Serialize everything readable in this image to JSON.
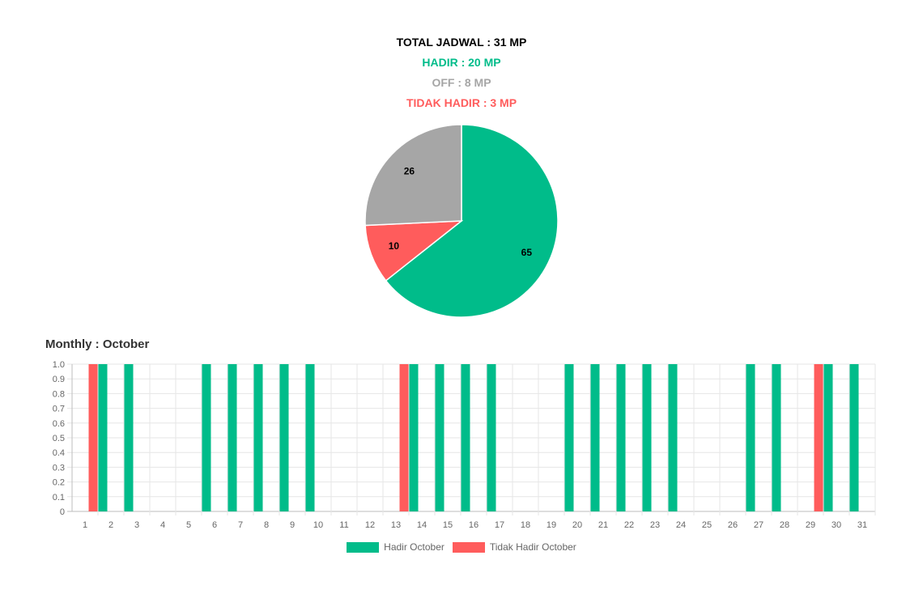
{
  "summary": {
    "total": "TOTAL JADWAL : 31 MP",
    "hadir": "HADIR : 20 MP",
    "off": "OFF : 8 MP",
    "tidak_hadir": "TIDAK HADIR : 3 MP"
  },
  "colors": {
    "hadir": "#00bc8a",
    "off": "#a6a6a6",
    "tidak_hadir": "#ff5c5c",
    "total": "#000000"
  },
  "monthly_title": "Monthly : October",
  "chart_data": [
    {
      "type": "pie",
      "slices": [
        {
          "value": 65,
          "label": "65",
          "color": "#00bc8a"
        },
        {
          "value": 10,
          "label": "10",
          "color": "#ff5c5c"
        },
        {
          "value": 26,
          "label": "26",
          "color": "#a6a6a6"
        }
      ]
    },
    {
      "type": "bar",
      "categories": [
        "1",
        "2",
        "3",
        "4",
        "5",
        "6",
        "7",
        "8",
        "9",
        "10",
        "11",
        "12",
        "13",
        "14",
        "15",
        "16",
        "17",
        "18",
        "19",
        "20",
        "21",
        "22",
        "23",
        "24",
        "25",
        "26",
        "27",
        "28",
        "29",
        "30",
        "31"
      ],
      "series": [
        {
          "name": "Hadir October",
          "color": "#00bc8a",
          "values": [
            0,
            1,
            1,
            0,
            0,
            1,
            1,
            1,
            1,
            1,
            0,
            0,
            0,
            1,
            1,
            1,
            1,
            0,
            0,
            1,
            1,
            1,
            1,
            1,
            0,
            0,
            1,
            1,
            0,
            1,
            1
          ]
        },
        {
          "name": "Tidak Hadir October",
          "color": "#ff5c5c",
          "values": [
            1,
            0,
            0,
            0,
            0,
            0,
            0,
            0,
            0,
            0,
            0,
            0,
            1,
            0,
            0,
            0,
            0,
            0,
            0,
            0,
            0,
            0,
            0,
            0,
            0,
            0,
            0,
            0,
            1,
            0,
            0
          ]
        }
      ],
      "ylim": [
        0,
        1
      ],
      "yticks": [
        "0",
        "0.1",
        "0.2",
        "0.3",
        "0.4",
        "0.5",
        "0.6",
        "0.7",
        "0.8",
        "0.9",
        "1.0"
      ],
      "grid": true,
      "legend_position": "bottom"
    }
  ]
}
